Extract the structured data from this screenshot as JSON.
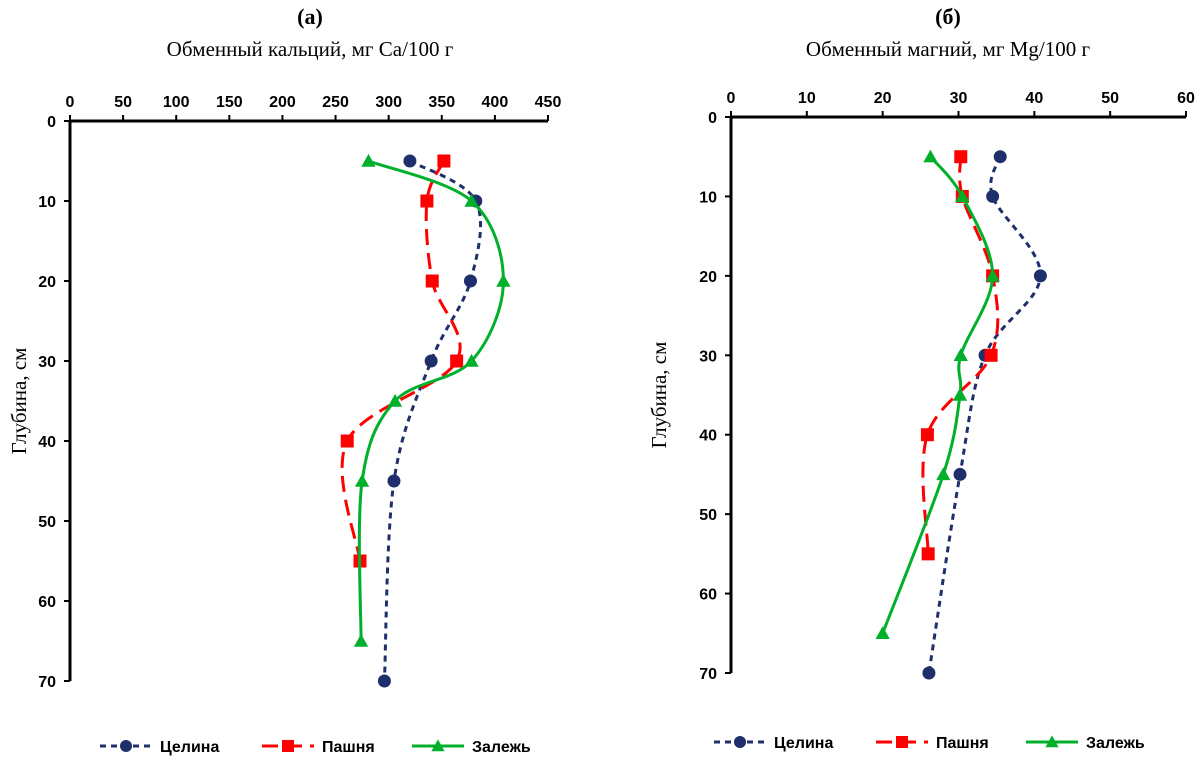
{
  "series_styles": [
    {
      "name": "Целина",
      "color": "#1f2f6b",
      "dash": "6,5",
      "marker": "circle"
    },
    {
      "name": "Пашня",
      "color": "#ff0000",
      "dash": "16,8",
      "marker": "square"
    },
    {
      "name": "Залежь",
      "color": "#00b02a",
      "dash": "",
      "marker": "triangle"
    }
  ],
  "chart_data": [
    {
      "type": "line",
      "panel_label": "(а)",
      "title": "Обменный кальций, мг Ca/100 г",
      "ylabel": "Глубина, см",
      "x_axis_position": "top",
      "y_reversed": true,
      "xlim": [
        0,
        450
      ],
      "ylim": [
        0,
        70
      ],
      "xticks": [
        "0",
        "50",
        "100",
        "150",
        "200",
        "250",
        "300",
        "350",
        "400",
        "450"
      ],
      "yticks": [
        "0",
        "10",
        "20",
        "30",
        "40",
        "50",
        "60",
        "70"
      ],
      "grid": false,
      "legend": "bottom",
      "series": [
        {
          "name": "Целина",
          "points": [
            [
              320,
              5
            ],
            [
              382,
              10
            ],
            [
              377,
              20
            ],
            [
              340,
              30
            ],
            [
              305,
              45
            ],
            [
              296,
              70
            ]
          ]
        },
        {
          "name": "Пашня",
          "points": [
            [
              352,
              5
            ],
            [
              336,
              10
            ],
            [
              341,
              20
            ],
            [
              364,
              30
            ],
            [
              261,
              40
            ],
            [
              273,
              55
            ]
          ]
        },
        {
          "name": "Залежь",
          "points": [
            [
              281,
              5
            ],
            [
              378,
              10
            ],
            [
              408,
              20
            ],
            [
              378,
              30
            ],
            [
              306,
              35
            ],
            [
              275,
              45
            ],
            [
              274,
              65
            ]
          ]
        }
      ]
    },
    {
      "type": "line",
      "panel_label": "(б)",
      "title": "Обменный магний, мг Mg/100 г",
      "ylabel": "Глубина, см",
      "x_axis_position": "top",
      "y_reversed": true,
      "xlim": [
        0,
        60
      ],
      "ylim": [
        0,
        70
      ],
      "xticks": [
        "0",
        "10",
        "20",
        "30",
        "40",
        "50",
        "60"
      ],
      "yticks": [
        "0",
        "10",
        "20",
        "30",
        "40",
        "50",
        "60",
        "70"
      ],
      "grid": false,
      "legend": "bottom",
      "series": [
        {
          "name": "Целина",
          "points": [
            [
              35.5,
              5
            ],
            [
              34.5,
              10
            ],
            [
              40.8,
              20
            ],
            [
              33.5,
              30
            ],
            [
              30.2,
              45
            ],
            [
              26.1,
              70
            ]
          ]
        },
        {
          "name": "Пашня",
          "points": [
            [
              30.3,
              5
            ],
            [
              30.5,
              10
            ],
            [
              34.5,
              20
            ],
            [
              34.3,
              30
            ],
            [
              25.9,
              40
            ],
            [
              26,
              55
            ]
          ]
        },
        {
          "name": "Залежь",
          "points": [
            [
              26.3,
              5
            ],
            [
              30.5,
              10
            ],
            [
              34.5,
              20
            ],
            [
              30.3,
              30
            ],
            [
              30.2,
              35
            ],
            [
              28,
              45
            ],
            [
              20,
              65
            ]
          ]
        }
      ]
    }
  ]
}
